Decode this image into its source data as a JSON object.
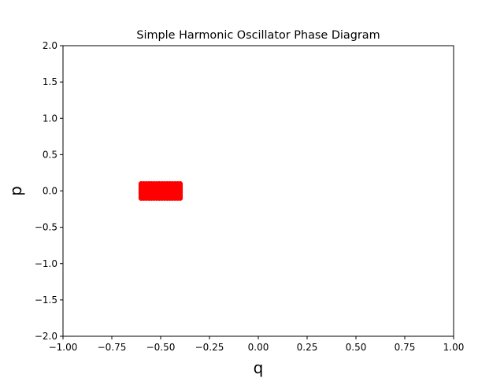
{
  "chart_data": {
    "type": "scatter",
    "title": "Simple Harmonic Oscillator Phase Diagram",
    "xlabel": "q",
    "ylabel": "p",
    "xlim": [
      -1.0,
      1.0
    ],
    "ylim": [
      -2.0,
      2.0
    ],
    "x_ticks": [
      -1.0,
      -0.75,
      -0.5,
      -0.25,
      0.0,
      0.25,
      0.5,
      0.75,
      1.0
    ],
    "x_tick_labels": [
      "−1.00",
      "−0.75",
      "−0.50",
      "−0.25",
      "0.00",
      "0.25",
      "0.50",
      "0.75",
      "1.00"
    ],
    "y_ticks": [
      -2.0,
      -1.5,
      -1.0,
      -0.5,
      0.0,
      0.5,
      1.0,
      1.5,
      2.0
    ],
    "y_tick_labels": [
      "−2.0",
      "−1.5",
      "−1.0",
      "−0.5",
      "0.0",
      "0.5",
      "1.0",
      "1.5",
      "2.0"
    ],
    "grid": false,
    "series": [
      {
        "color": "#ff0000",
        "region": {
          "q_min": -0.6,
          "q_max": -0.4,
          "p_min": -0.1,
          "p_max": 0.1
        }
      }
    ]
  }
}
